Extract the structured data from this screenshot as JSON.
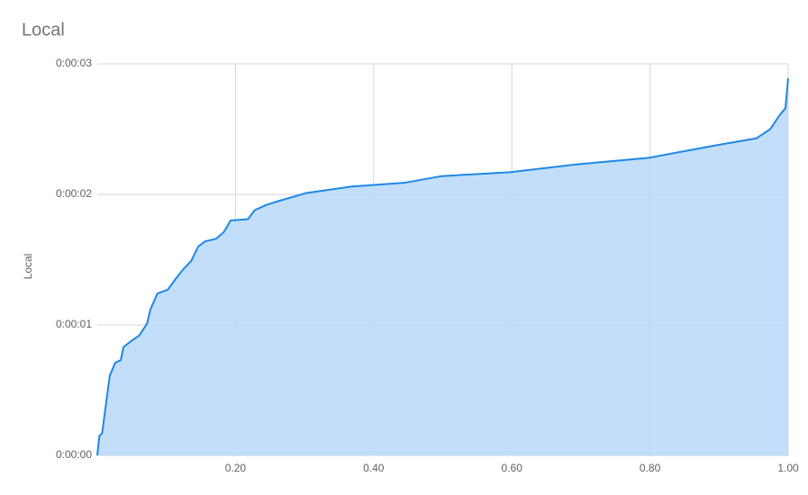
{
  "chart_data": {
    "type": "area",
    "title": "Local",
    "y_label": "Local",
    "x": [
      0,
      0.003,
      0.007,
      0.018,
      0.026,
      0.034,
      0.038,
      0.05,
      0.061,
      0.072,
      0.077,
      0.087,
      0.102,
      0.113,
      0.125,
      0.136,
      0.146,
      0.156,
      0.172,
      0.183,
      0.193,
      0.218,
      0.228,
      0.245,
      0.263,
      0.302,
      0.368,
      0.446,
      0.498,
      0.597,
      0.694,
      0.798,
      0.889,
      0.954,
      0.974,
      0.988,
      0.996,
      1.0
    ],
    "values": [
      0.0,
      0.15,
      0.17,
      0.61,
      0.71,
      0.73,
      0.83,
      0.88,
      0.92,
      1.01,
      1.12,
      1.24,
      1.27,
      1.35,
      1.43,
      1.49,
      1.6,
      1.64,
      1.66,
      1.71,
      1.8,
      1.81,
      1.88,
      1.92,
      1.95,
      2.01,
      2.06,
      2.09,
      2.14,
      2.17,
      2.23,
      2.28,
      2.37,
      2.43,
      2.5,
      2.61,
      2.66,
      2.89
    ],
    "color": "#1e88e5",
    "fill_color": "#bbdafa",
    "xlim": [
      0,
      1
    ],
    "xticks": [
      {
        "value": 0.2,
        "label": "0.20"
      },
      {
        "value": 0.4,
        "label": "0.40"
      },
      {
        "value": 0.6,
        "label": "0.60"
      },
      {
        "value": 0.8,
        "label": "0.80"
      },
      {
        "value": 1.0,
        "label": "1.00"
      }
    ],
    "ylim": [
      0,
      3
    ],
    "yticks": [
      {
        "value": 0,
        "label": "0:00:00"
      },
      {
        "value": 1,
        "label": "0:00:01"
      },
      {
        "value": 2,
        "label": "0:00:02"
      },
      {
        "value": 3,
        "label": "0:00:03"
      }
    ],
    "grid": true
  }
}
